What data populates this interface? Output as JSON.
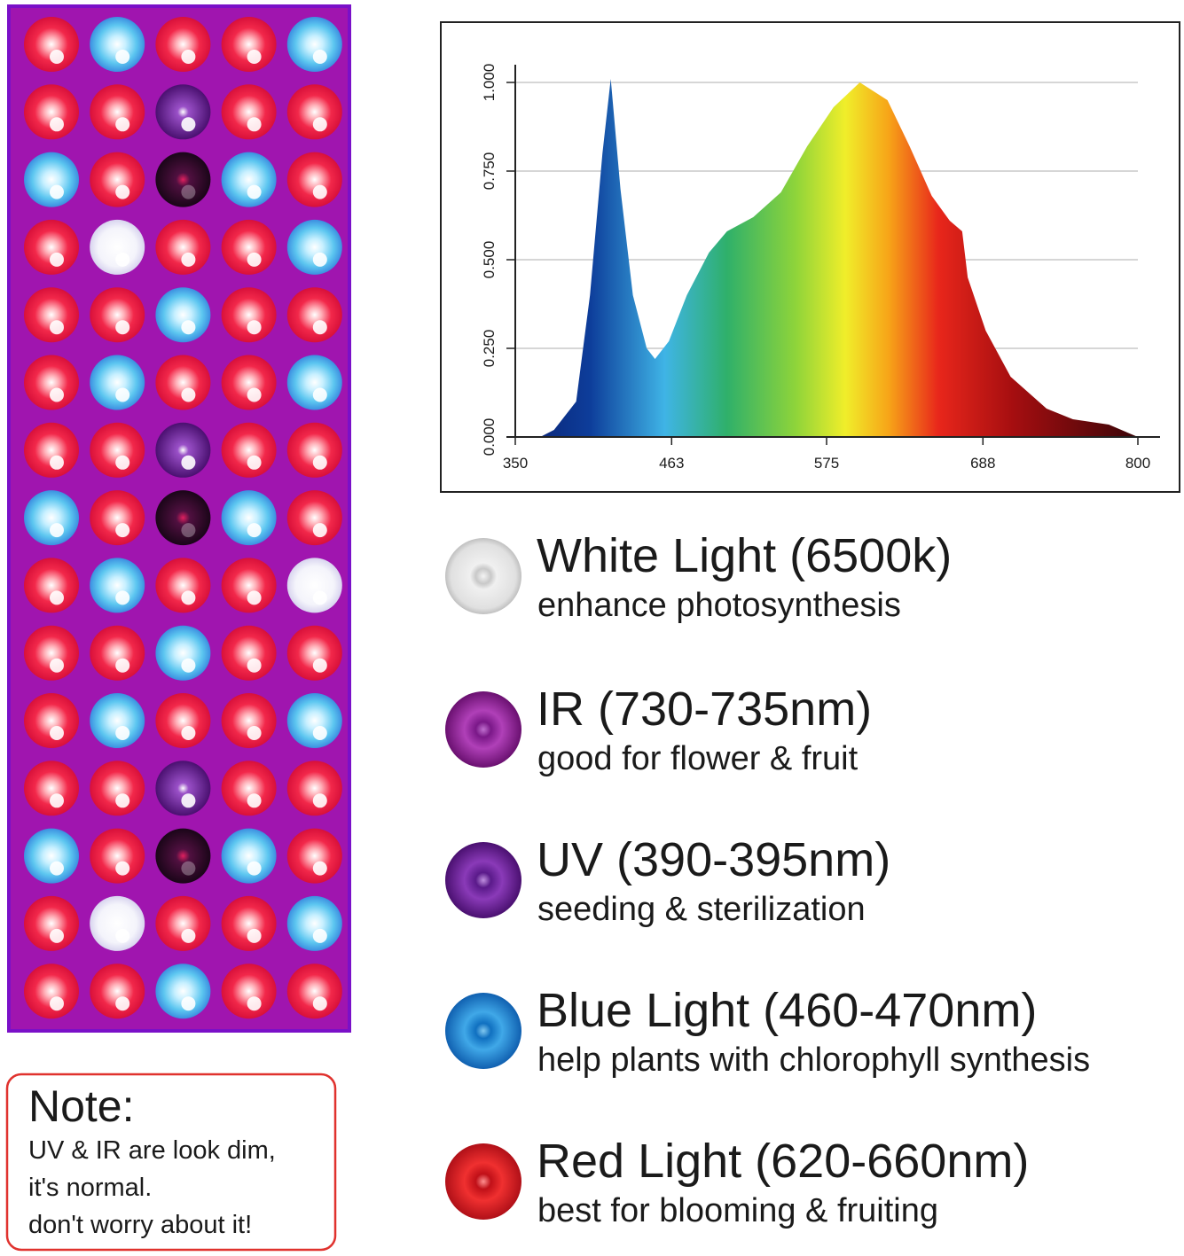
{
  "chart_data": {
    "type": "area",
    "x": [
      350,
      368,
      378,
      394,
      404,
      413,
      419,
      426,
      435,
      445,
      451,
      461,
      474,
      490,
      503,
      522,
      542,
      561,
      580,
      599,
      619,
      635,
      651,
      664,
      673,
      677,
      690,
      708,
      734,
      753,
      779,
      800
    ],
    "values": [
      0,
      0,
      0.02,
      0.1,
      0.4,
      0.8,
      1.01,
      0.7,
      0.4,
      0.25,
      0.22,
      0.27,
      0.4,
      0.52,
      0.58,
      0.62,
      0.69,
      0.82,
      0.93,
      1.0,
      0.95,
      0.82,
      0.68,
      0.61,
      0.58,
      0.45,
      0.3,
      0.17,
      0.08,
      0.05,
      0.035,
      0
    ],
    "xlim": [
      350,
      800
    ],
    "ylim": [
      0,
      1.05
    ],
    "xticks": [
      350,
      463,
      575,
      688,
      800
    ],
    "yticks": [
      {
        "value": 0,
        "label": "0.000"
      },
      {
        "value": 0.25,
        "label": "0.250"
      },
      {
        "value": 0.5,
        "label": "0.500"
      },
      {
        "value": 0.75,
        "label": "0.750"
      },
      {
        "value": 1,
        "label": "1.000"
      }
    ],
    "grid": true
  },
  "legend": [
    {
      "title": "White Light (6500k)",
      "subtitle": "enhance photosynthesis"
    },
    {
      "title": "IR (730-735nm)",
      "subtitle": "good for flower & fruit"
    },
    {
      "title": "UV (390-395nm)",
      "subtitle": "seeding & sterilization"
    },
    {
      "title": "Blue Light (460-470nm)",
      "subtitle": "help plants with chlorophyll synthesis"
    },
    {
      "title": "Red Light (620-660nm)",
      "subtitle": "best for blooming & fruiting"
    }
  ],
  "note": {
    "title": "Note:",
    "lines": [
      "UV & IR are look dim,",
      "it's normal.",
      "don't worry about it!"
    ]
  }
}
